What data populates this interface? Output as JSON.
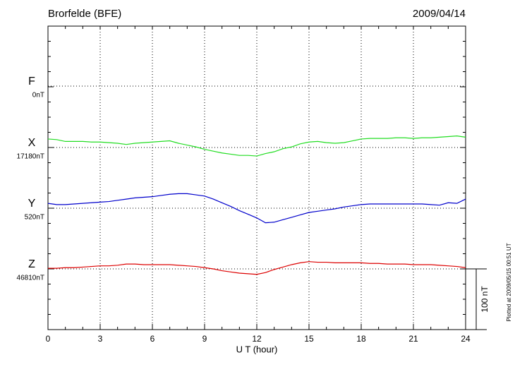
{
  "chart_data": {
    "type": "line",
    "title": "Brorfelde (BFE)",
    "date": "2009/04/14",
    "xlabel": "U T (hour)",
    "footnote": "Plotted at 2009/05/15 00:51 UT",
    "xlim": [
      0,
      24
    ],
    "xticks": [
      0,
      3,
      6,
      9,
      12,
      15,
      18,
      21,
      24
    ],
    "grid": true,
    "scale_bar": {
      "value": 100,
      "label": "100 nT"
    },
    "x": [
      0,
      0.5,
      1,
      1.5,
      2,
      2.5,
      3,
      3.5,
      4,
      4.5,
      5,
      5.5,
      6,
      6.5,
      7,
      7.5,
      8,
      8.5,
      9,
      9.5,
      10,
      10.5,
      11,
      11.5,
      12,
      12.5,
      13,
      13.5,
      14,
      14.5,
      15,
      15.5,
      16,
      16.5,
      17,
      17.5,
      18,
      18.5,
      19,
      19.5,
      20,
      20.5,
      21,
      21.5,
      22,
      22.5,
      23,
      23.5,
      24
    ],
    "series": [
      {
        "name": "F",
        "color": "#f0a000",
        "baseline": {
          "value": 0,
          "label": "0nT"
        },
        "values": [
          null,
          null,
          null,
          null,
          null,
          null,
          null,
          null,
          null,
          null,
          null,
          null,
          null,
          null,
          null,
          null,
          null,
          null,
          null,
          null,
          null,
          null,
          null,
          null,
          null,
          null,
          null,
          null,
          null,
          null,
          null,
          null,
          null,
          null,
          null,
          null,
          null,
          null,
          null,
          null,
          null,
          null,
          null,
          null,
          null,
          null,
          null,
          null,
          null
        ]
      },
      {
        "name": "X",
        "color": "#22dd22",
        "baseline": {
          "value": 17180,
          "label": "17180nT"
        },
        "values": [
          17194,
          17193,
          17190,
          17190,
          17190,
          17189,
          17189,
          17188,
          17187,
          17185,
          17187,
          17188,
          17189,
          17190,
          17191,
          17187,
          17184,
          17181,
          17177,
          17174,
          17171,
          17169,
          17167,
          17167,
          17166,
          17170,
          17173,
          17178,
          17181,
          17186,
          17189,
          17190,
          17188,
          17187,
          17188,
          17191,
          17194,
          17195,
          17195,
          17195,
          17196,
          17196,
          17195,
          17196,
          17196,
          17197,
          17198,
          17199,
          17197
        ]
      },
      {
        "name": "Y",
        "color": "#0000cc",
        "baseline": {
          "value": 520,
          "label": "520nT"
        },
        "values": [
          528,
          526,
          526,
          527,
          528,
          529,
          530,
          531,
          533,
          535,
          537,
          538,
          539,
          541,
          543,
          544,
          544,
          542,
          540,
          535,
          529,
          523,
          516,
          510,
          504,
          496,
          497,
          501,
          505,
          509,
          513,
          515,
          517,
          519,
          522,
          524,
          526,
          527,
          527,
          527,
          527,
          527,
          527,
          527,
          526,
          525,
          529,
          528,
          535
        ]
      },
      {
        "name": "Z",
        "color": "#dd0000",
        "baseline": {
          "value": 46810,
          "label": "46810nT"
        },
        "values": [
          46811,
          46811,
          46812,
          46812,
          46813,
          46814,
          46815,
          46815,
          46816,
          46818,
          46818,
          46817,
          46817,
          46817,
          46817,
          46816,
          46815,
          46814,
          46812,
          46810,
          46807,
          46805,
          46803,
          46802,
          46801,
          46804,
          46809,
          46813,
          46817,
          46820,
          46822,
          46821,
          46821,
          46820,
          46820,
          46820,
          46820,
          46819,
          46819,
          46818,
          46818,
          46818,
          46817,
          46817,
          46817,
          46816,
          46815,
          46814,
          46812
        ]
      }
    ]
  }
}
